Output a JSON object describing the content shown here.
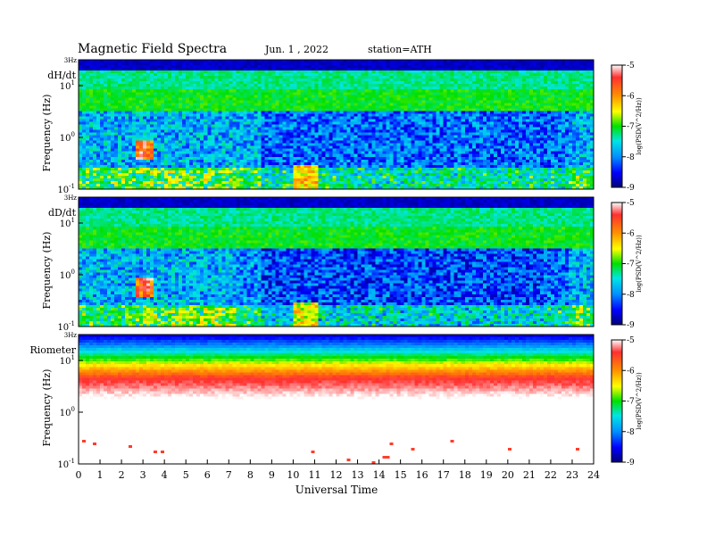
{
  "header": {
    "title": "Magnetic  Field  Spectra",
    "date": "Jun.  1  ,  2022",
    "station": "station=ATH"
  },
  "chart_data": {
    "type": "heatmap",
    "x_axis": {
      "label": "Universal  Time",
      "range": [
        0,
        24
      ],
      "ticks": [
        "0",
        "1",
        "2",
        "3",
        "4",
        "5",
        "6",
        "7",
        "8",
        "9",
        "10",
        "11",
        "12",
        "13",
        "14",
        "15",
        "16",
        "17",
        "18",
        "19",
        "20",
        "21",
        "22",
        "23",
        "24"
      ]
    },
    "colorbar": {
      "label": "log(PSD(V^2/Hz))",
      "range": [
        -9,
        -5
      ],
      "ticks": [
        "-5",
        "-6",
        "-7",
        "-8",
        "-9"
      ],
      "colors": [
        "#00007a",
        "#0000ff",
        "#0090ff",
        "#00e5e5",
        "#00e000",
        "#ffff00",
        "#ff8000",
        "#ff0000",
        "#ffffff"
      ]
    },
    "panels": [
      {
        "label": "dH/dt",
        "ylabel": "Frequency  (Hz)",
        "y_top_label": "3Hz",
        "y_ticks": [
          {
            "base": "10",
            "exp": "1"
          },
          {
            "base": "10",
            "exp": "0"
          },
          {
            "base": "10",
            "exp": "-1"
          }
        ]
      },
      {
        "label": "dD/dt",
        "ylabel": "Frequency  (Hz)",
        "y_top_label": "3Hz",
        "y_ticks": [
          {
            "base": "10",
            "exp": "1"
          },
          {
            "base": "10",
            "exp": "0"
          },
          {
            "base": "10",
            "exp": "-1"
          }
        ]
      },
      {
        "label": "Riometer",
        "ylabel": "Frequency  (Hz)",
        "y_top_label": "3Hz",
        "y_ticks": [
          {
            "base": "10",
            "exp": "1"
          },
          {
            "base": "10",
            "exp": "0"
          },
          {
            "base": "10",
            "exp": "-1"
          }
        ]
      }
    ]
  }
}
